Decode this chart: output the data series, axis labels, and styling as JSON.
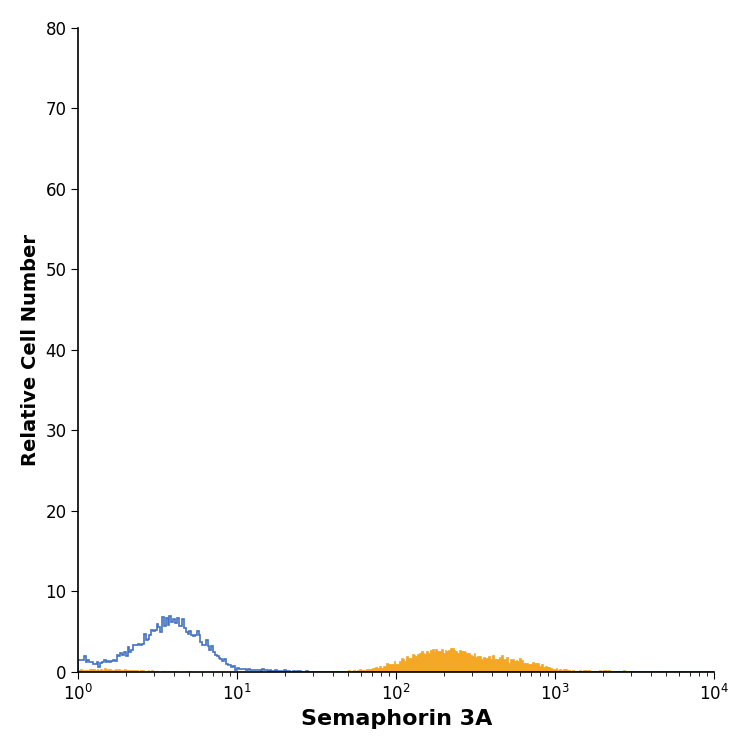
{
  "title": "",
  "xlabel": "Semaphorin 3A",
  "ylabel": "Relative Cell Number",
  "xlim": [
    1,
    10000
  ],
  "ylim": [
    0,
    80
  ],
  "yticks": [
    0,
    10,
    20,
    30,
    40,
    50,
    60,
    70,
    80
  ],
  "blue_color": "#4472C4",
  "orange_color": "#F5A623",
  "background_color": "#ffffff",
  "xlabel_fontsize": 16,
  "ylabel_fontsize": 14,
  "tick_fontsize": 12
}
